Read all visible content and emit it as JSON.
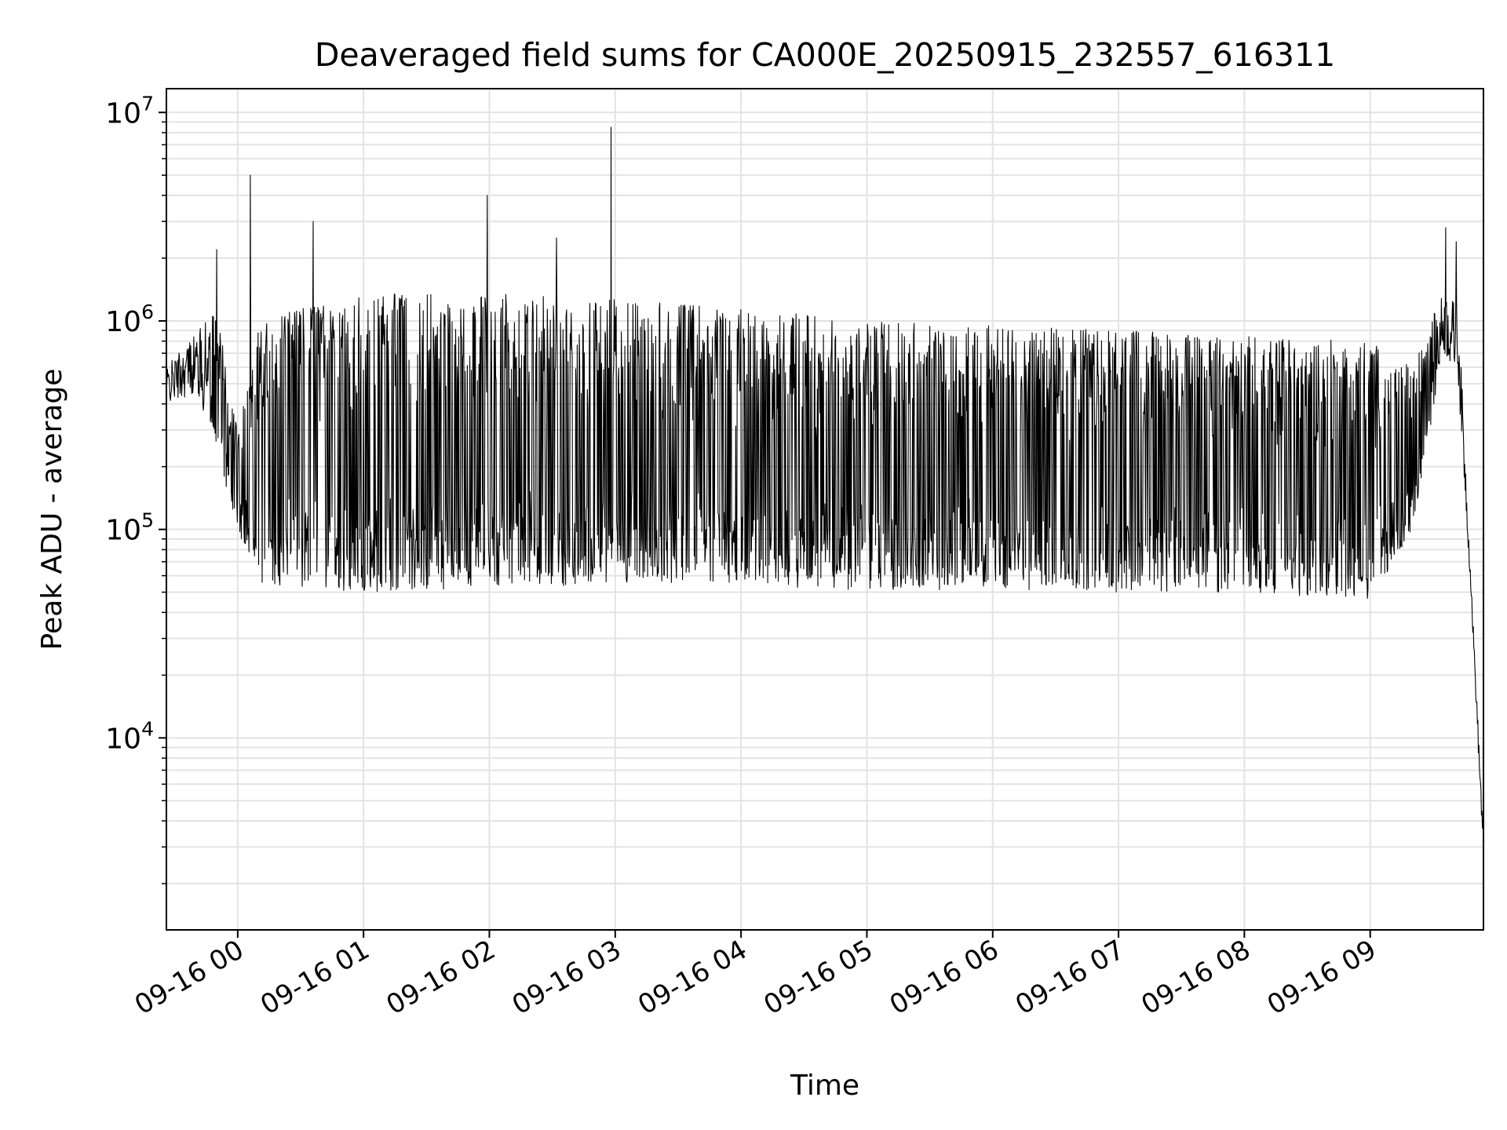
{
  "chart_data": {
    "type": "line",
    "title": "Deaveraged field sums for CA000E_20250915_232557_616311",
    "xlabel": "Time",
    "ylabel": "Peak ADU - average",
    "yscale": "log",
    "ylim": [
      1200,
      13000000
    ],
    "xlim": [
      "2025-09-15 23:26",
      "2025-09-16 09:54"
    ],
    "grid": true,
    "line_color": "#000000",
    "x_ticks": [
      {
        "value": "2025-09-16 00:00",
        "label": "09-16 00"
      },
      {
        "value": "2025-09-16 01:00",
        "label": "09-16 01"
      },
      {
        "value": "2025-09-16 02:00",
        "label": "09-16 02"
      },
      {
        "value": "2025-09-16 03:00",
        "label": "09-16 03"
      },
      {
        "value": "2025-09-16 04:00",
        "label": "09-16 04"
      },
      {
        "value": "2025-09-16 05:00",
        "label": "09-16 05"
      },
      {
        "value": "2025-09-16 06:00",
        "label": "09-16 06"
      },
      {
        "value": "2025-09-16 07:00",
        "label": "09-16 07"
      },
      {
        "value": "2025-09-16 08:00",
        "label": "09-16 08"
      },
      {
        "value": "2025-09-16 09:00",
        "label": "09-16 09"
      }
    ],
    "y_ticks": [
      {
        "value": 10000,
        "base": "10",
        "exp": "4"
      },
      {
        "value": 100000,
        "base": "10",
        "exp": "5"
      },
      {
        "value": 1000000,
        "base": "10",
        "exp": "6"
      },
      {
        "value": 10000000,
        "base": "10",
        "exp": "7"
      }
    ],
    "series": [
      {
        "x_start": "2025-09-15 23:26",
        "x_end": "2025-09-16 09:54",
        "description_points": [
          {
            "x": "2025-09-15 23:26",
            "low": 400000,
            "high": 600000
          },
          {
            "x": "2025-09-15 23:40",
            "low": 450000,
            "high": 900000
          },
          {
            "x": "2025-09-15 23:50",
            "low": 250000,
            "high": 1100000
          },
          {
            "x": "2025-09-16 00:00",
            "low": 90000,
            "high": 300000
          },
          {
            "x": "2025-09-16 00:10",
            "low": 55000,
            "high": 1000000
          },
          {
            "x": "2025-09-16 00:30",
            "low": 52000,
            "high": 1200000
          },
          {
            "x": "2025-09-16 01:00",
            "low": 50000,
            "high": 1400000
          },
          {
            "x": "2025-09-16 02:00",
            "low": 52000,
            "high": 1350000
          },
          {
            "x": "2025-09-16 03:00",
            "low": 55000,
            "high": 1300000
          },
          {
            "x": "2025-09-16 04:00",
            "low": 55000,
            "high": 1150000
          },
          {
            "x": "2025-09-16 05:00",
            "low": 50000,
            "high": 1000000
          },
          {
            "x": "2025-09-16 06:00",
            "low": 52000,
            "high": 950000
          },
          {
            "x": "2025-09-16 07:00",
            "low": 50000,
            "high": 900000
          },
          {
            "x": "2025-09-16 08:00",
            "low": 50000,
            "high": 850000
          },
          {
            "x": "2025-09-16 09:00",
            "low": 45000,
            "high": 800000
          },
          {
            "x": "2025-09-16 09:20",
            "low": 100000,
            "high": 600000
          },
          {
            "x": "2025-09-16 09:35",
            "low": 700000,
            "high": 1400000
          },
          {
            "x": "2025-09-16 09:42",
            "low": 500000,
            "high": 1200000
          },
          {
            "x": "2025-09-16 09:48",
            "low": 50000,
            "high": 60000
          },
          {
            "x": "2025-09-16 09:54",
            "low": 2500,
            "high": 3500
          }
        ],
        "spikes": [
          {
            "x": "2025-09-15 23:50",
            "y": 2200000
          },
          {
            "x": "2025-09-16 00:06",
            "y": 5000000
          },
          {
            "x": "2025-09-16 00:36",
            "y": 3000000
          },
          {
            "x": "2025-09-16 01:59",
            "y": 4000000
          },
          {
            "x": "2025-09-16 02:32",
            "y": 2500000
          },
          {
            "x": "2025-09-16 02:58",
            "y": 8500000
          },
          {
            "x": "2025-09-16 09:36",
            "y": 2800000
          },
          {
            "x": "2025-09-16 09:41",
            "y": 2400000
          }
        ]
      }
    ]
  }
}
